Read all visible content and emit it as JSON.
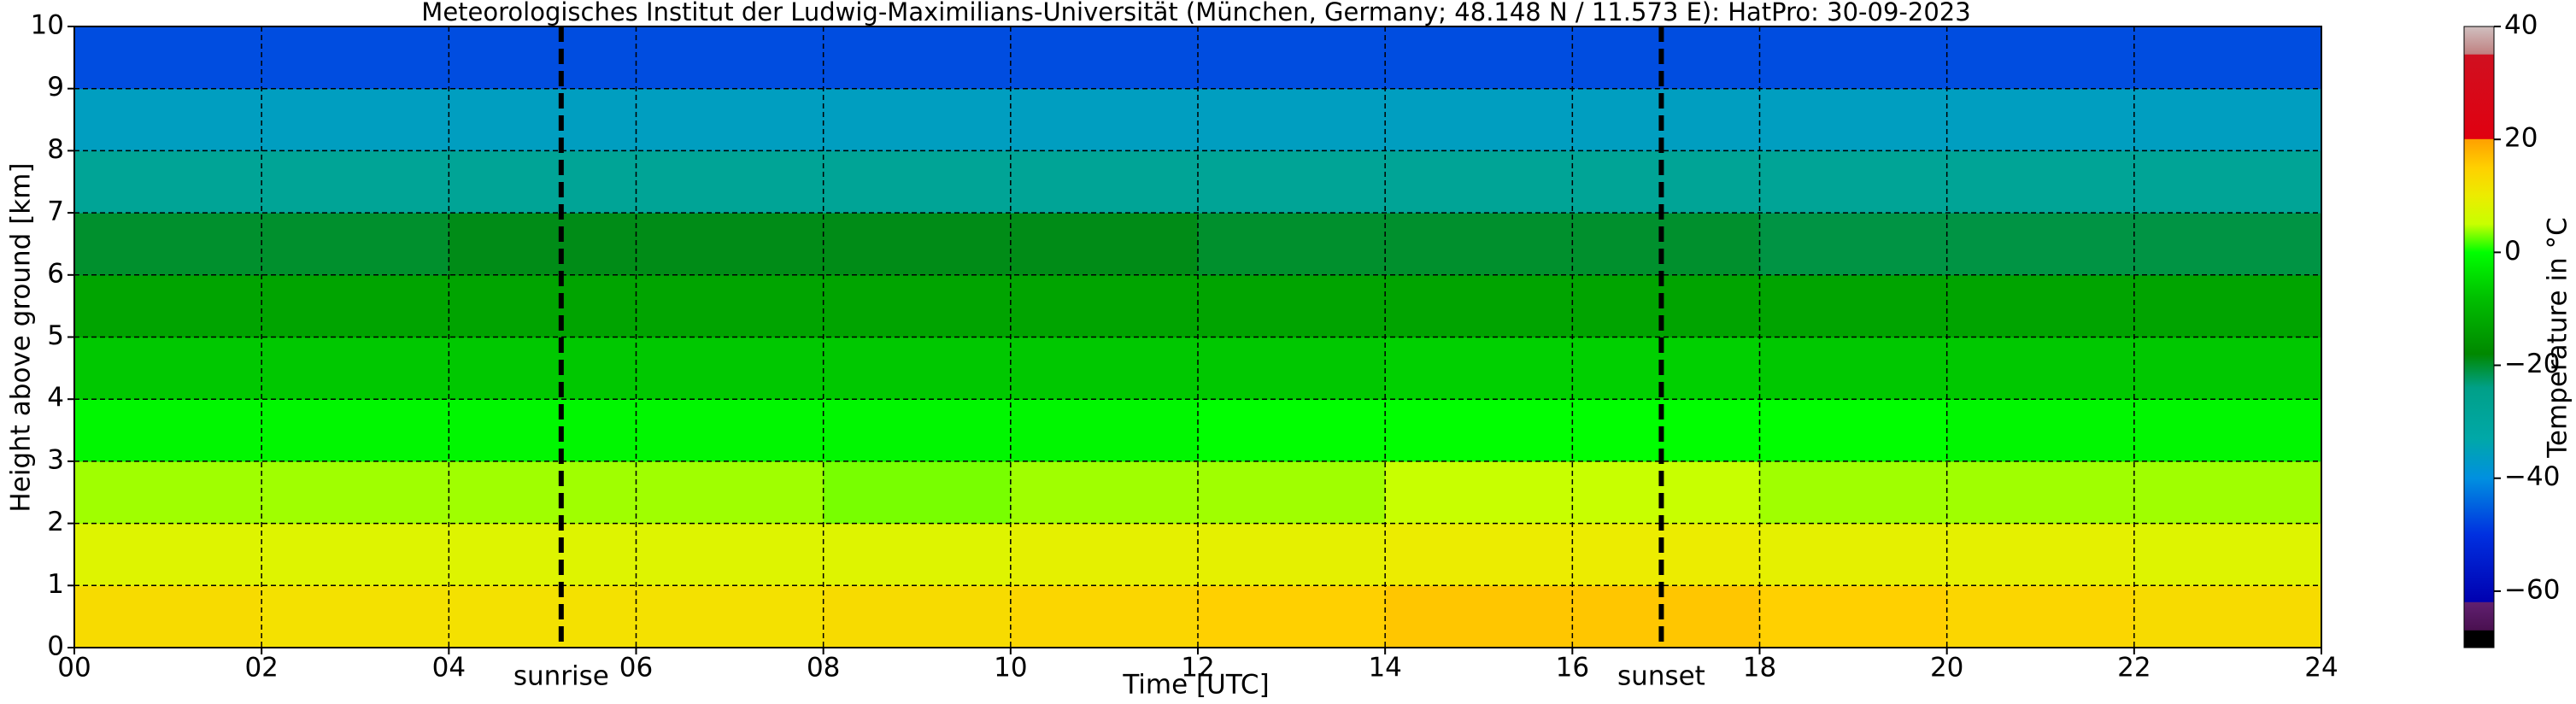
{
  "chart_data": {
    "type": "heatmap",
    "title": "Meteorologisches Institut der Ludwig-Maximilians-Universität (München, Germany; 48.148 N / 11.573 E):    HatPro: 30-09-2023",
    "x_label": "Time [UTC]",
    "y_label": "Height above ground [km]",
    "colorbar_label": "Temperature in °C",
    "xlim": [
      0,
      24
    ],
    "ylim": [
      0,
      10
    ],
    "xticks": [
      {
        "value": 0,
        "label": "00"
      },
      {
        "value": 2,
        "label": "02"
      },
      {
        "value": 4,
        "label": "04"
      },
      {
        "value": 6,
        "label": "06"
      },
      {
        "value": 8,
        "label": "08"
      },
      {
        "value": 10,
        "label": "10"
      },
      {
        "value": 12,
        "label": "12"
      },
      {
        "value": 14,
        "label": "14"
      },
      {
        "value": 16,
        "label": "16"
      },
      {
        "value": 18,
        "label": "18"
      },
      {
        "value": 20,
        "label": "20"
      },
      {
        "value": 22,
        "label": "22"
      },
      {
        "value": 24,
        "label": "24"
      }
    ],
    "yticks": [
      0,
      1,
      2,
      3,
      4,
      5,
      6,
      7,
      8,
      9,
      10
    ],
    "grid": true,
    "x_bins": [
      0,
      2,
      4,
      6,
      8,
      10,
      12,
      14,
      16,
      18,
      20,
      22,
      24
    ],
    "y_bins": [
      0,
      1,
      2,
      3,
      4,
      5,
      6,
      7,
      8,
      9,
      10
    ],
    "z": [
      [
        13,
        12,
        12,
        12,
        13,
        14,
        15,
        16,
        16,
        15,
        14,
        13
      ],
      [
        8,
        8,
        8,
        8,
        8,
        9,
        9,
        10,
        10,
        9,
        9,
        8
      ],
      [
        4,
        4,
        4,
        4,
        3,
        4,
        4,
        5,
        5,
        4,
        4,
        4
      ],
      [
        -1,
        -1,
        -1,
        -1,
        -1,
        -1,
        0,
        0,
        0,
        0,
        -1,
        -1
      ],
      [
        -7,
        -7,
        -7,
        -7,
        -7,
        -7,
        -7,
        -6,
        -6,
        -7,
        -7,
        -7
      ],
      [
        -13,
        -13,
        -13,
        -13,
        -13,
        -13,
        -13,
        -13,
        -13,
        -13,
        -13,
        -13
      ],
      [
        -20,
        -20,
        -19,
        -19,
        -19,
        -19,
        -20,
        -20,
        -20,
        -21,
        -21,
        -21
      ],
      [
        -28,
        -28,
        -28,
        -28,
        -28,
        -28,
        -28,
        -28,
        -28,
        -28,
        -28,
        -28
      ],
      [
        -36,
        -36,
        -36,
        -36,
        -36,
        -36,
        -36,
        -36,
        -36,
        -36,
        -36,
        -36
      ],
      [
        -47,
        -47,
        -47,
        -47,
        -47,
        -47,
        -47,
        -47,
        -47,
        -47,
        -47,
        -47
      ]
    ],
    "clim": [
      -70,
      40
    ],
    "cticks": [
      {
        "value": -60,
        "label": "−60"
      },
      {
        "value": -40,
        "label": "−40"
      },
      {
        "value": -20,
        "label": "−20"
      },
      0,
      20,
      40
    ],
    "colorscale": [
      {
        "value": -70,
        "color": "#000000"
      },
      {
        "value": -67,
        "color": "#000000"
      },
      {
        "value": -66.9,
        "color": "#4a1050"
      },
      {
        "value": -62,
        "color": "#602070"
      },
      {
        "value": -61.9,
        "color": "#0000b0"
      },
      {
        "value": -50,
        "color": "#0030e0"
      },
      {
        "value": -40,
        "color": "#0090e0"
      },
      {
        "value": -33,
        "color": "#00a8a8"
      },
      {
        "value": -24,
        "color": "#00a088"
      },
      {
        "value": -18,
        "color": "#008800"
      },
      {
        "value": -8,
        "color": "#00c000"
      },
      {
        "value": 0,
        "color": "#00ff00"
      },
      {
        "value": 5,
        "color": "#c8ff00"
      },
      {
        "value": 10,
        "color": "#ecec00"
      },
      {
        "value": 15,
        "color": "#ffd000"
      },
      {
        "value": 20,
        "color": "#ffa000"
      },
      {
        "value": 20.1,
        "color": "#e00010"
      },
      {
        "value": 35,
        "color": "#d01020"
      },
      {
        "value": 35.1,
        "color": "#c08080"
      },
      {
        "value": 40,
        "color": "#d0c0c0"
      }
    ],
    "events": [
      {
        "x": 5.2,
        "label": "sunrise"
      },
      {
        "x": 16.95,
        "label": "sunset"
      }
    ]
  }
}
